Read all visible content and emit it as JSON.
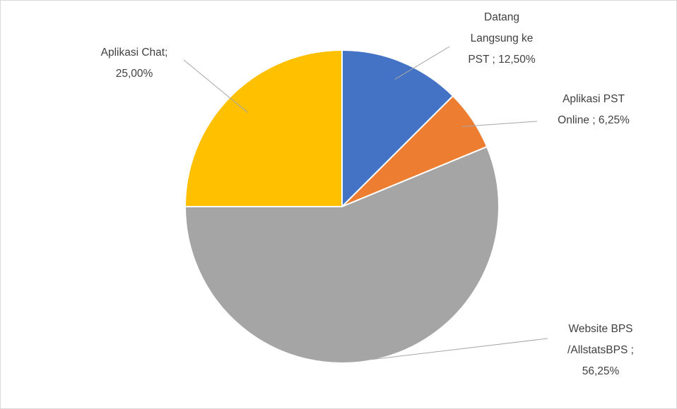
{
  "chart_data": {
    "type": "pie",
    "categories": [
      "Datang Langsung ke PST ;",
      "Aplikasi PST Online ;",
      "Website BPS /AllstatsBPS ;",
      "Aplikasi Chat;"
    ],
    "values": [
      12.5,
      6.25,
      56.25,
      25
    ],
    "value_labels": [
      "12,50%",
      "6,25%",
      "56,25%",
      "25,00%"
    ],
    "colors": [
      "#4472c4",
      "#ed7d31",
      "#a5a5a5",
      "#ffc000"
    ]
  }
}
